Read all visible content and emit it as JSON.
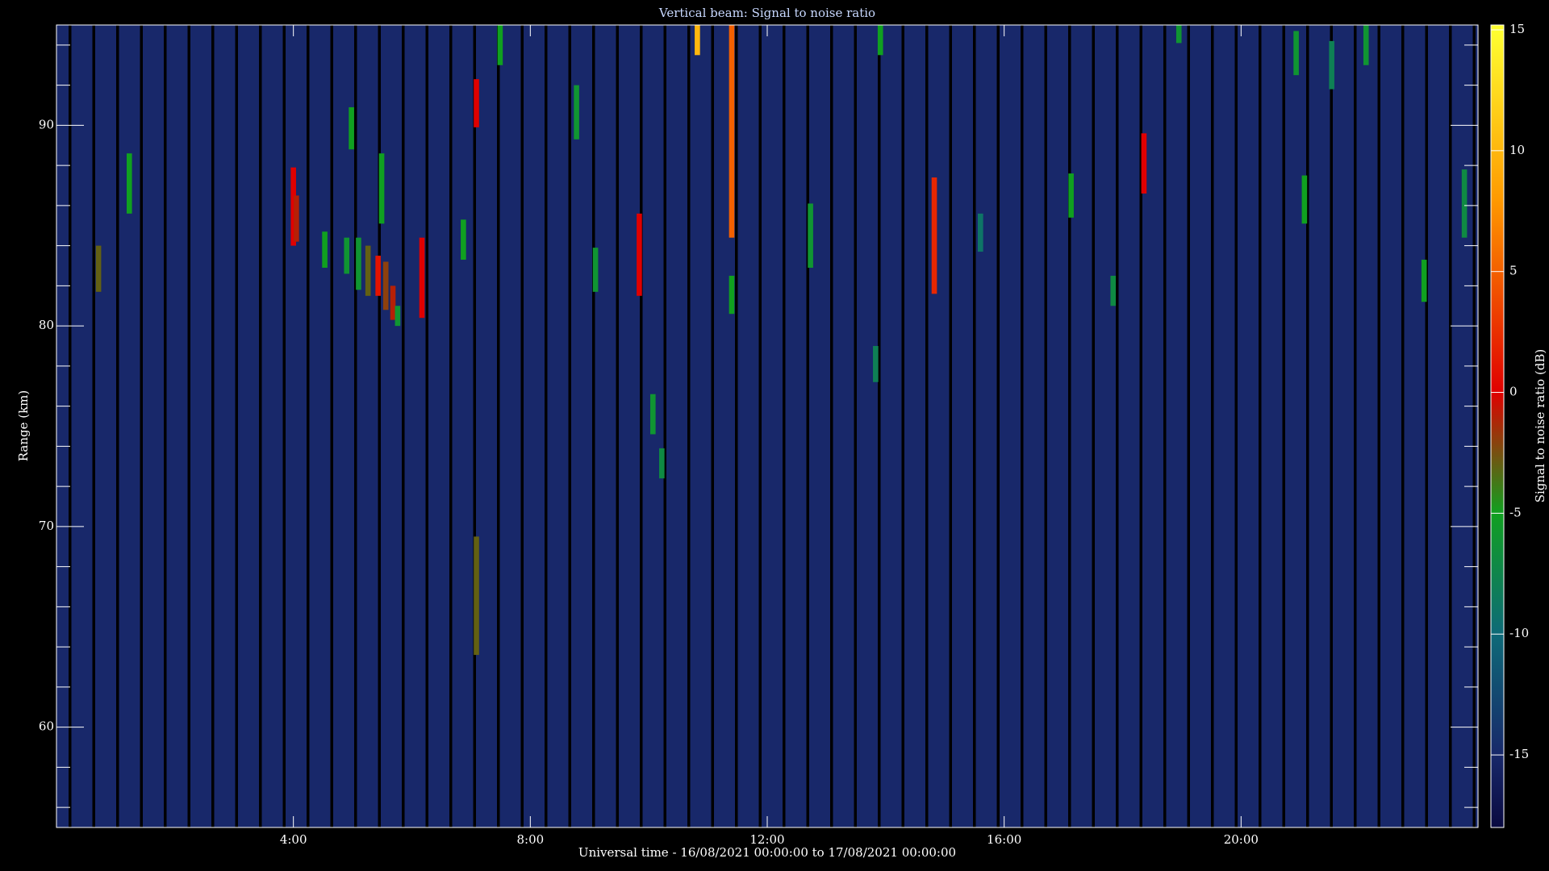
{
  "chart_data": {
    "type": "heatmap",
    "title": "Vertical beam: Signal to noise ratio",
    "x_label": "Universal time - 16/08/2021 00:00:00 to 17/08/2021 00:00:00",
    "y_label": "Range (km)",
    "colorbar_label": "Signal to noise ratio (dB)",
    "xlim": [
      0,
      24
    ],
    "xticks": [
      {
        "value": 4,
        "label": "4:00"
      },
      {
        "value": 8,
        "label": "8:00"
      },
      {
        "value": 12,
        "label": "12:00"
      },
      {
        "value": 16,
        "label": "16:00"
      },
      {
        "value": 20,
        "label": "20:00"
      }
    ],
    "ylim": [
      55,
      95
    ],
    "yticks": [
      60,
      70,
      80,
      90
    ],
    "y_minor_ticks": [
      56,
      58,
      62,
      64,
      66,
      68,
      72,
      74,
      76,
      78,
      82,
      84,
      86,
      88,
      92,
      94
    ],
    "clim": [
      -18,
      15.2
    ],
    "cticks": [
      -15,
      -10,
      -5,
      0,
      5,
      10,
      15
    ],
    "colorscale": [
      [
        -18,
        "#0a0a40"
      ],
      [
        -15,
        "#18286a"
      ],
      [
        -10,
        "#0e6a78"
      ],
      [
        -5,
        "#10a020"
      ],
      [
        0,
        "#e00000"
      ],
      [
        8,
        "#ff9a00"
      ],
      [
        15,
        "#ffff30"
      ]
    ],
    "background_value": -15,
    "echoes": {
      "x": [
        0.71,
        1.23,
        4.0,
        4.05,
        4.53,
        4.98,
        4.9,
        5.1,
        5.26,
        5.43,
        5.56,
        5.68,
        5.76,
        5.49,
        6.17,
        6.87,
        7.09,
        7.09,
        7.49,
        8.78,
        9.1,
        9.84,
        10.07,
        10.22,
        10.82,
        11.4,
        11.4,
        12.73,
        13.83,
        13.91,
        14.82,
        15.6,
        17.13,
        17.84,
        18.36,
        18.95,
        20.93,
        21.07,
        21.53,
        22.11,
        23.09,
        23.77
      ],
      "y_start": [
        81.7,
        85.6,
        84.0,
        84.2,
        82.9,
        88.8,
        82.6,
        81.8,
        81.5,
        81.5,
        80.8,
        80.3,
        80.0,
        85.1,
        80.4,
        83.3,
        89.9,
        63.6,
        93.0,
        89.3,
        81.7,
        81.5,
        74.6,
        72.4,
        93.5,
        84.4,
        80.6,
        82.9,
        77.2,
        93.5,
        81.6,
        83.7,
        85.4,
        81.0,
        86.6,
        94.1,
        92.5,
        85.1,
        91.8,
        93.0,
        81.2,
        84.4
      ],
      "y_end": [
        84.0,
        88.6,
        87.9,
        86.5,
        84.7,
        90.9,
        84.4,
        84.4,
        84.0,
        83.5,
        83.2,
        82.0,
        81.0,
        88.6,
        84.4,
        85.3,
        92.3,
        69.5,
        95.0,
        92.0,
        83.9,
        85.6,
        76.6,
        73.9,
        95.0,
        95.0,
        82.5,
        86.1,
        79.0,
        95.0,
        87.4,
        85.6,
        87.6,
        82.5,
        89.6,
        95.0,
        94.7,
        87.5,
        94.2,
        95.0,
        83.3,
        87.8
      ],
      "values": [
        -3,
        -5,
        0,
        -1,
        -5,
        -5,
        -6,
        -6,
        -3,
        1,
        -2,
        -1,
        -6,
        -5,
        0,
        -5,
        0,
        -3,
        -5,
        -6,
        -6,
        0,
        -6,
        -7,
        10,
        5,
        -5,
        -6,
        -8,
        -5,
        2,
        -9,
        -5,
        -7,
        0,
        -6,
        -6,
        -5,
        -8,
        -6,
        -5,
        -7
      ]
    }
  }
}
